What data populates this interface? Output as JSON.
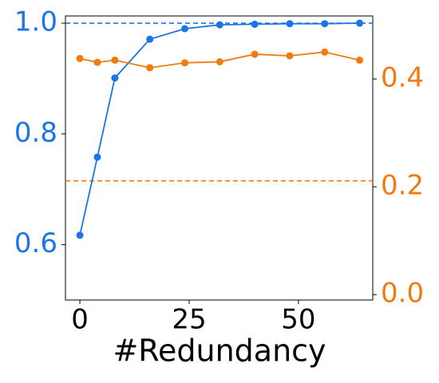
{
  "chart_data": {
    "type": "line",
    "x_label": "#Redundancy",
    "xlim": [
      -3.3,
      67
    ],
    "xticks": [
      0,
      25,
      50
    ],
    "ylim": [
      0.5,
      1.013
    ],
    "yticks": [
      0.6,
      0.8,
      {
        "value": 1.0,
        "label": "1.0"
      }
    ],
    "y_color": "#1a75e8",
    "y2lim": [
      -0.01,
      0.517
    ],
    "y2ticks": [
      {
        "value": 0.0,
        "label": "0.0"
      },
      0.2,
      0.4
    ],
    "y2_color": "#f07b0f",
    "series": [
      {
        "color": "#1a75e8",
        "axis": "y",
        "x": [
          0,
          4,
          8,
          16,
          24,
          32,
          40,
          48,
          56,
          64
        ],
        "values": [
          0.617,
          0.758,
          0.901,
          0.971,
          0.99,
          0.997,
          0.998,
          0.999,
          0.999,
          1.0
        ]
      },
      {
        "color": "#f07b0f",
        "axis": "y2",
        "x": [
          0,
          4,
          8,
          16,
          24,
          32,
          40,
          48,
          56,
          64
        ],
        "values": [
          0.438,
          0.431,
          0.435,
          0.421,
          0.43,
          0.432,
          0.446,
          0.443,
          0.45,
          0.435
        ]
      }
    ],
    "reference_lines": [
      {
        "value": 1.0,
        "axis": "y",
        "color": "#1a75e8"
      },
      {
        "value": 0.211,
        "axis": "y2",
        "color": "#f07b0f"
      }
    ]
  }
}
